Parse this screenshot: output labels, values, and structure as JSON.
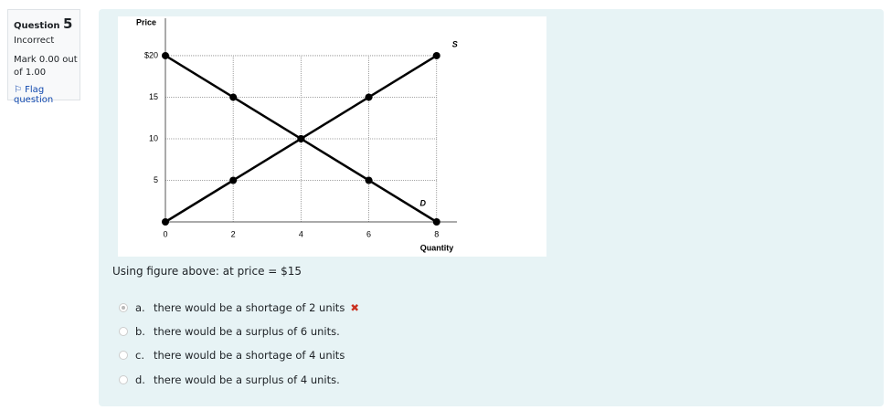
{
  "info": {
    "question_label": "Question",
    "question_number": "5",
    "status": "Incorrect",
    "mark": "Mark 0.00 out of 1.00",
    "flag": "Flag question"
  },
  "chart_data": {
    "type": "line",
    "xlabel": "Quantity",
    "ylabel": "Price",
    "x": [
      0,
      2,
      4,
      6,
      8
    ],
    "series": [
      {
        "name": "S",
        "color": "#000000",
        "values": [
          0,
          5,
          10,
          15,
          20
        ]
      },
      {
        "name": "D",
        "color": "#000000",
        "values": [
          20,
          15,
          10,
          5,
          0
        ]
      }
    ],
    "xlim": [
      0,
      8.6
    ],
    "ylim": [
      0,
      24.5
    ],
    "xticks": [
      0,
      2,
      4,
      6,
      8
    ],
    "yticks": [
      5,
      10,
      15,
      {
        "value": 20,
        "label": "$20"
      }
    ],
    "grid": true
  },
  "question": "Using figure above: at price = $15",
  "options": [
    {
      "letter": "a.",
      "text": "there would be a shortage of 2 units"
    },
    {
      "letter": "b.",
      "text": "there would be a surplus of 6 units."
    },
    {
      "letter": "c.",
      "text": "there would be a shortage of 4 units"
    },
    {
      "letter": "d.",
      "text": "there would be a surplus of 4 units."
    }
  ]
}
